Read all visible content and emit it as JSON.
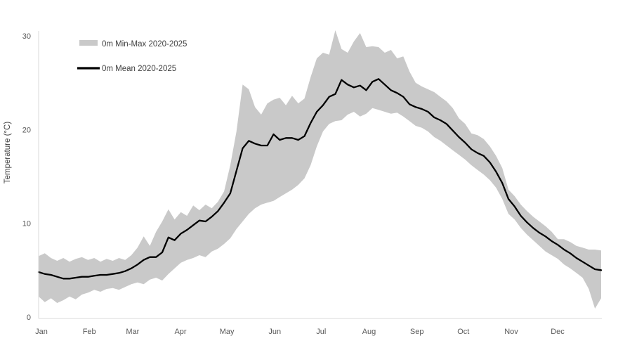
{
  "chart": {
    "y_axis": {
      "title": "Temperature (°C)",
      "ticks": [
        0,
        10,
        20,
        30
      ],
      "min": 0,
      "max": 30
    },
    "x_axis": {
      "months": [
        "Jan",
        "Feb",
        "Mar",
        "Apr",
        "May",
        "Jun",
        "Jul",
        "Aug",
        "Sep",
        "Oct",
        "Nov",
        "Dec"
      ],
      "month_start_days": [
        0,
        31,
        59,
        90,
        120,
        151,
        181,
        212,
        243,
        273,
        304,
        334
      ],
      "days_in_year": 365
    },
    "legend": [
      {
        "label": "0m Min-Max 2020-2025",
        "type": "band"
      },
      {
        "label": "0m Mean 2020-2025",
        "type": "line"
      }
    ],
    "colors": {
      "band": "#c9c9c9",
      "mean_line": "#000000",
      "axis_line": "#d9d9d9",
      "label_text": "#595959",
      "background": "#ffffff"
    }
  },
  "chart_data": {
    "type": "line",
    "title": "",
    "xlabel": "",
    "ylabel": "Temperature (°C)",
    "ylim": [
      0,
      30
    ],
    "x_unit": "day_of_year",
    "grid": false,
    "legend_position": "top-left-inside",
    "x": [
      1,
      5,
      9,
      13,
      17,
      21,
      25,
      29,
      33,
      37,
      41,
      45,
      49,
      53,
      57,
      61,
      65,
      69,
      73,
      77,
      81,
      85,
      89,
      93,
      97,
      101,
      105,
      109,
      113,
      117,
      121,
      125,
      129,
      133,
      137,
      141,
      145,
      149,
      153,
      157,
      161,
      165,
      169,
      173,
      177,
      181,
      185,
      189,
      193,
      197,
      201,
      205,
      209,
      213,
      217,
      221,
      225,
      229,
      233,
      237,
      241,
      245,
      249,
      253,
      257,
      261,
      265,
      269,
      273,
      277,
      281,
      285,
      289,
      293,
      297,
      301,
      305,
      309,
      313,
      317,
      321,
      325,
      329,
      333,
      337,
      341,
      345,
      349,
      353,
      357,
      361,
      365
    ],
    "series": [
      {
        "name": "0m Min 2020-2025",
        "values": [
          2.2,
          1.6,
          2.0,
          1.5,
          1.8,
          2.2,
          1.9,
          2.4,
          2.6,
          2.9,
          2.7,
          3.0,
          3.1,
          2.9,
          3.2,
          3.5,
          3.7,
          3.5,
          4.0,
          4.2,
          3.9,
          4.6,
          5.2,
          5.8,
          6.1,
          6.3,
          6.6,
          6.4,
          7.0,
          7.3,
          7.8,
          8.4,
          9.4,
          10.2,
          11.0,
          11.6,
          12.0,
          12.2,
          12.4,
          12.8,
          13.2,
          13.6,
          14.1,
          14.8,
          16.2,
          18.2,
          19.8,
          20.6,
          20.9,
          21.0,
          21.6,
          21.9,
          21.4,
          21.7,
          22.3,
          22.1,
          21.9,
          21.7,
          21.8,
          21.4,
          20.9,
          20.4,
          20.2,
          19.8,
          19.2,
          18.8,
          18.3,
          17.8,
          17.3,
          16.8,
          16.2,
          15.7,
          15.2,
          14.6,
          13.8,
          12.6,
          11.0,
          10.4,
          9.5,
          8.8,
          8.2,
          7.6,
          7.0,
          6.6,
          6.2,
          5.6,
          5.2,
          4.7,
          4.2,
          3.0,
          0.9,
          2.0
        ]
      },
      {
        "name": "0m Max 2020-2025",
        "values": [
          6.5,
          6.8,
          6.3,
          6.0,
          6.3,
          5.9,
          6.2,
          6.4,
          6.1,
          6.3,
          5.9,
          6.2,
          6.0,
          6.3,
          6.1,
          6.6,
          7.4,
          8.6,
          7.6,
          9.1,
          10.2,
          11.5,
          10.4,
          11.2,
          10.8,
          11.9,
          11.4,
          12.0,
          11.6,
          12.3,
          13.4,
          16.2,
          19.8,
          24.8,
          24.3,
          22.4,
          21.6,
          22.8,
          23.2,
          23.4,
          22.6,
          23.6,
          22.8,
          23.3,
          25.6,
          27.6,
          28.2,
          28.0,
          30.6,
          28.6,
          28.2,
          29.4,
          30.3,
          28.8,
          28.9,
          28.8,
          28.2,
          28.5,
          27.6,
          27.8,
          26.2,
          25.0,
          24.6,
          24.3,
          24.0,
          23.5,
          23.0,
          22.3,
          21.2,
          20.6,
          19.6,
          19.4,
          19.0,
          18.2,
          17.2,
          15.9,
          13.6,
          12.9,
          12.0,
          11.3,
          10.7,
          10.2,
          9.7,
          9.1,
          8.3,
          8.3,
          8.0,
          7.6,
          7.4,
          7.2,
          7.2,
          7.1
        ]
      },
      {
        "name": "0m Mean 2020-2025",
        "values": [
          4.8,
          4.6,
          4.5,
          4.3,
          4.1,
          4.1,
          4.2,
          4.3,
          4.3,
          4.4,
          4.5,
          4.5,
          4.6,
          4.7,
          4.9,
          5.2,
          5.6,
          6.1,
          6.4,
          6.4,
          6.9,
          8.5,
          8.2,
          8.9,
          9.3,
          9.8,
          10.3,
          10.2,
          10.7,
          11.3,
          12.2,
          13.2,
          15.6,
          18.0,
          18.8,
          18.5,
          18.3,
          18.3,
          19.5,
          18.9,
          19.1,
          19.1,
          18.9,
          19.3,
          20.7,
          21.9,
          22.6,
          23.5,
          23.8,
          25.3,
          24.8,
          24.5,
          24.7,
          24.2,
          25.1,
          25.4,
          24.8,
          24.2,
          23.9,
          23.5,
          22.7,
          22.4,
          22.2,
          21.9,
          21.3,
          21.0,
          20.6,
          19.9,
          19.2,
          18.6,
          17.9,
          17.5,
          17.2,
          16.5,
          15.5,
          14.3,
          12.6,
          11.8,
          10.8,
          10.1,
          9.5,
          9.0,
          8.6,
          8.1,
          7.7,
          7.2,
          6.8,
          6.3,
          5.9,
          5.5,
          5.1,
          5.0
        ]
      }
    ]
  }
}
